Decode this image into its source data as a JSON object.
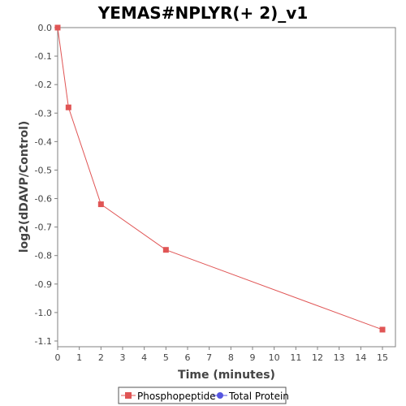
{
  "chart_data": {
    "type": "line",
    "title": "YEMAS#NPLYR(+ 2)_v1",
    "xlabel": "Time (minutes)",
    "ylabel": "log2(dDAVP/Control)",
    "xlim": [
      0,
      15.6
    ],
    "ylim": [
      -1.12,
      0.0
    ],
    "xticks": [
      0,
      1,
      2,
      3,
      4,
      5,
      6,
      7,
      8,
      9,
      10,
      11,
      12,
      13,
      14,
      15
    ],
    "xtick_labels": [
      "0",
      "1",
      "2",
      "3",
      "4",
      "5",
      "6",
      "7",
      "8",
      "9",
      "10",
      "11",
      "12",
      "13",
      "14",
      "15"
    ],
    "yticks": [
      0.0,
      -0.1,
      -0.2,
      -0.3,
      -0.4,
      -0.5,
      -0.6,
      -0.7,
      -0.8,
      -0.9,
      -1.0,
      -1.1
    ],
    "ytick_labels": [
      "0.0",
      "-0.1",
      "-0.2",
      "-0.3",
      "-0.4",
      "-0.5",
      "-0.6",
      "-0.7",
      "-0.8",
      "-0.9",
      "-1.0",
      "-1.1"
    ],
    "grid": false,
    "legend_position": "bottom",
    "series": [
      {
        "name": "Phosphopeptide",
        "color": "#e05555",
        "marker": "square",
        "x": [
          0,
          0.5,
          2,
          5,
          15
        ],
        "y": [
          0.0,
          -0.28,
          -0.62,
          -0.78,
          -1.06
        ]
      },
      {
        "name": "Total Protein",
        "color": "#5555e0",
        "marker": "circle",
        "x": [],
        "y": []
      }
    ]
  }
}
